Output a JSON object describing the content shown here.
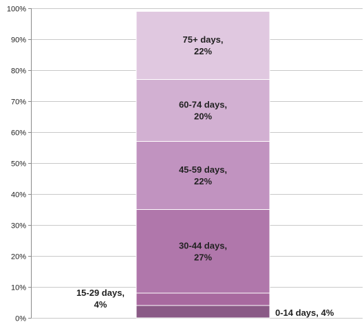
{
  "chart_data": {
    "type": "bar",
    "stacked": true,
    "orientation": "vertical",
    "categories": [
      ""
    ],
    "series": [
      {
        "name": "0-14 days",
        "values": [
          4
        ],
        "label": [
          "0-14 days, 4%"
        ],
        "label_position": "outside-right",
        "color": "#8a5a86"
      },
      {
        "name": "15-29 days",
        "values": [
          4
        ],
        "label": [
          "15-29 days,",
          "4%"
        ],
        "label_position": "outside-left",
        "color": "#a8699f"
      },
      {
        "name": "30-44 days",
        "values": [
          27
        ],
        "label": [
          "30-44 days,",
          "27%"
        ],
        "label_position": "inside",
        "color": "#b077ab"
      },
      {
        "name": "45-59 days",
        "values": [
          22
        ],
        "label": [
          "45-59 days,",
          "22%"
        ],
        "label_position": "inside",
        "color": "#c193c0"
      },
      {
        "name": "60-74 days",
        "values": [
          20
        ],
        "label": [
          "60-74 days,",
          "20%"
        ],
        "label_position": "inside",
        "color": "#d2b0d2"
      },
      {
        "name": "75+ days",
        "values": [
          22
        ],
        "label": [
          "75+ days,",
          "22%"
        ],
        "label_position": "inside",
        "color": "#e0c8e0"
      }
    ],
    "y_ticks": [
      "0%",
      "10%",
      "20%",
      "30%",
      "40%",
      "50%",
      "60%",
      "70%",
      "80%",
      "90%",
      "100%"
    ],
    "ylim": [
      0,
      100
    ],
    "title": "",
    "xlabel": "",
    "ylabel": "",
    "grid": true,
    "legend": "none"
  }
}
